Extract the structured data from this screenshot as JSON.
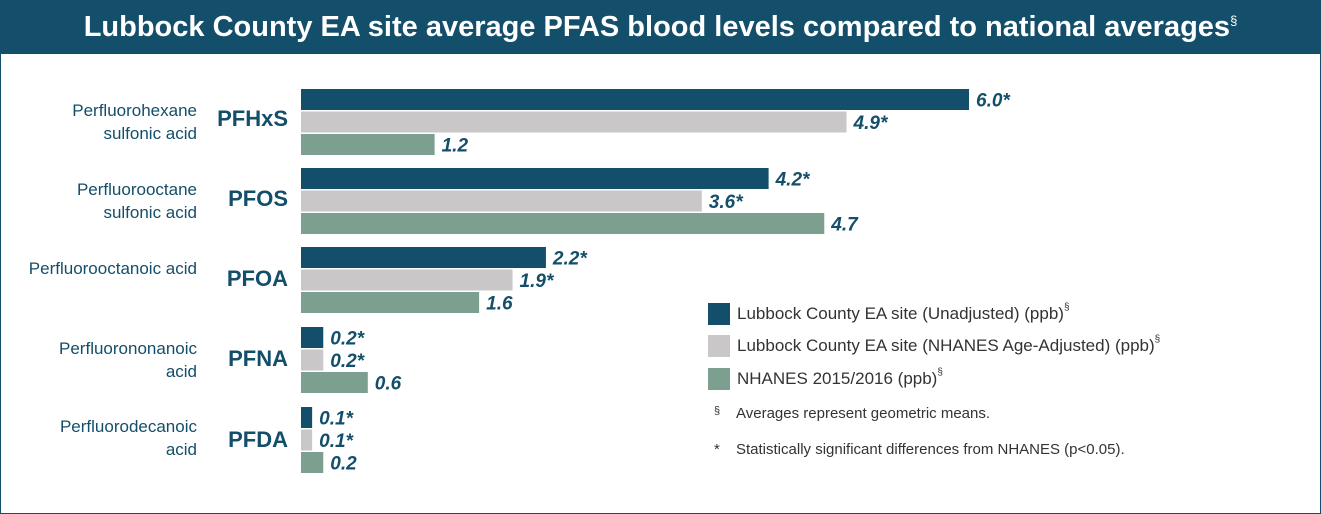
{
  "title": "Lubbock County EA site average PFAS blood levels compared to national averages",
  "title_mark": "§",
  "colors": {
    "primary": "#134e6a",
    "series1": "#134e6a",
    "series2": "#c9c7c7",
    "series3": "#7c9f8f"
  },
  "chart_data": {
    "type": "bar",
    "orientation": "horizontal",
    "categories": [
      {
        "abbr": "PFHxS",
        "full_name": "Perfluorohexane sulfonic acid"
      },
      {
        "abbr": "PFOS",
        "full_name": "Perfluorooctane sulfonic acid"
      },
      {
        "abbr": "PFOA",
        "full_name": "Perfluorooctanoic acid"
      },
      {
        "abbr": "PFNA",
        "full_name": "Perfluorononanoic acid"
      },
      {
        "abbr": "PFDA",
        "full_name": "Perfluorodecanoic acid"
      }
    ],
    "series": [
      {
        "name": "Lubbock County EA site (Unadjusted) (ppb)",
        "mark": "§",
        "color": "#134e6a",
        "values": [
          6.0,
          4.2,
          2.2,
          0.2,
          0.1
        ],
        "labels": [
          "6.0*",
          "4.2*",
          "2.2*",
          "0.2*",
          "0.1*"
        ]
      },
      {
        "name": "Lubbock County EA site (NHANES Age-Adjusted) (ppb)",
        "mark": "§",
        "color": "#c9c7c7",
        "values": [
          4.9,
          3.6,
          1.9,
          0.2,
          0.1
        ],
        "labels": [
          "4.9*",
          "3.6*",
          "1.9*",
          "0.2*",
          "0.1*"
        ]
      },
      {
        "name": "NHANES 2015/2016 (ppb)",
        "mark": "§",
        "color": "#7c9f8f",
        "values": [
          1.2,
          4.7,
          1.6,
          0.6,
          0.2
        ],
        "labels": [
          "1.2",
          "4.7",
          "1.6",
          "0.6",
          "0.2"
        ]
      }
    ],
    "xlim": [
      0,
      6.0
    ],
    "grid": false,
    "legend_position": "bottom-right"
  },
  "notes": [
    {
      "mark": "§",
      "text": "Averages represent geometric means."
    },
    {
      "mark": "*",
      "text": "Statistically significant differences from NHANES (p<0.05)."
    }
  ]
}
